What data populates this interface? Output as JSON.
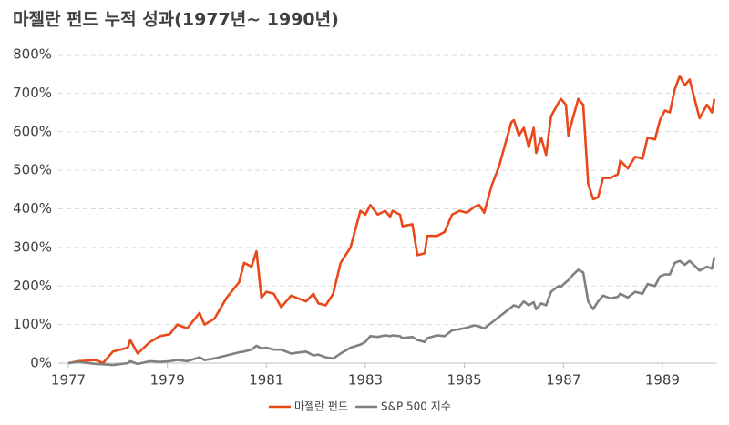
{
  "chart_data": {
    "type": "line",
    "title": "마젤란 펀드 누적 성과(1977년~ 1990년)",
    "x": [
      1977.0,
      1977.2,
      1977.55,
      1977.7,
      1977.9,
      1978.2,
      1978.25,
      1978.4,
      1978.65,
      1978.85,
      1979.05,
      1979.2,
      1979.4,
      1979.65,
      1979.75,
      1979.95,
      1980.2,
      1980.45,
      1980.55,
      1980.7,
      1980.8,
      1980.9,
      1981.0,
      1981.15,
      1981.3,
      1981.5,
      1981.8,
      1981.95,
      1982.05,
      1982.2,
      1982.35,
      1982.5,
      1982.7,
      1982.9,
      1983.0,
      1983.1,
      1983.25,
      1983.4,
      1983.5,
      1983.55,
      1983.7,
      1983.75,
      1983.95,
      1984.05,
      1984.2,
      1984.25,
      1984.45,
      1984.6,
      1984.75,
      1984.9,
      1985.05,
      1985.2,
      1985.3,
      1985.4,
      1985.55,
      1985.7,
      1985.85,
      1985.95,
      1986.0,
      1986.1,
      1986.2,
      1986.3,
      1986.4,
      1986.45,
      1986.55,
      1986.65,
      1986.75,
      1986.9,
      1986.95,
      1987.05,
      1987.1,
      1987.2,
      1987.3,
      1987.4,
      1987.5,
      1987.6,
      1987.7,
      1987.8,
      1987.95,
      1988.1,
      1988.15,
      1988.3,
      1988.45,
      1988.6,
      1988.7,
      1988.85,
      1988.95,
      1989.05,
      1989.15,
      1989.25,
      1989.35,
      1989.45,
      1989.55,
      1989.75,
      1989.9,
      1990.0,
      1990.05
    ],
    "series": [
      {
        "name": "마젤란 펀드",
        "color": "#e8481a",
        "values": [
          0,
          5,
          8,
          0,
          30,
          40,
          60,
          25,
          55,
          70,
          75,
          100,
          90,
          130,
          100,
          115,
          170,
          210,
          260,
          250,
          290,
          170,
          185,
          180,
          145,
          175,
          160,
          180,
          155,
          150,
          180,
          260,
          300,
          395,
          385,
          410,
          385,
          395,
          380,
          395,
          385,
          355,
          360,
          280,
          285,
          330,
          330,
          340,
          385,
          395,
          390,
          405,
          410,
          390,
          460,
          510,
          580,
          625,
          630,
          590,
          610,
          560,
          610,
          545,
          585,
          540,
          640,
          675,
          685,
          670,
          590,
          640,
          685,
          670,
          465,
          425,
          430,
          480,
          480,
          490,
          525,
          505,
          535,
          530,
          585,
          580,
          630,
          655,
          650,
          710,
          745,
          720,
          735,
          635,
          670,
          650,
          685
        ]
      },
      {
        "name": "S&P 500 지수",
        "color": "#808080",
        "values": [
          0,
          3,
          -2,
          -3,
          -5,
          0,
          5,
          -2,
          5,
          3,
          5,
          8,
          5,
          15,
          8,
          12,
          20,
          28,
          30,
          35,
          45,
          38,
          40,
          35,
          35,
          25,
          30,
          20,
          22,
          15,
          12,
          25,
          40,
          48,
          55,
          70,
          68,
          72,
          70,
          72,
          70,
          65,
          68,
          60,
          55,
          65,
          72,
          70,
          85,
          88,
          92,
          98,
          95,
          90,
          105,
          120,
          135,
          145,
          150,
          145,
          160,
          150,
          158,
          140,
          155,
          150,
          185,
          200,
          198,
          210,
          215,
          230,
          242,
          235,
          160,
          140,
          160,
          175,
          168,
          172,
          180,
          170,
          185,
          180,
          205,
          200,
          225,
          230,
          230,
          260,
          265,
          255,
          265,
          240,
          250,
          245,
          275
        ]
      }
    ],
    "xlim": [
      1977,
      1990.1
    ],
    "xticks": [
      1977,
      1979,
      1981,
      1983,
      1985,
      1987,
      1989
    ],
    "ylim": [
      0,
      800
    ],
    "yticks": [
      {
        "value": 0,
        "label": "0%"
      },
      {
        "value": 100,
        "label": "100%"
      },
      {
        "value": 200,
        "label": "200%"
      },
      {
        "value": 300,
        "label": "300%"
      },
      {
        "value": 400,
        "label": "400%"
      },
      {
        "value": 500,
        "label": "500%"
      },
      {
        "value": 600,
        "label": "600%"
      },
      {
        "value": 700,
        "label": "700%"
      },
      {
        "value": 800,
        "label": "800%"
      }
    ],
    "grid": true,
    "legend": "bottom"
  }
}
